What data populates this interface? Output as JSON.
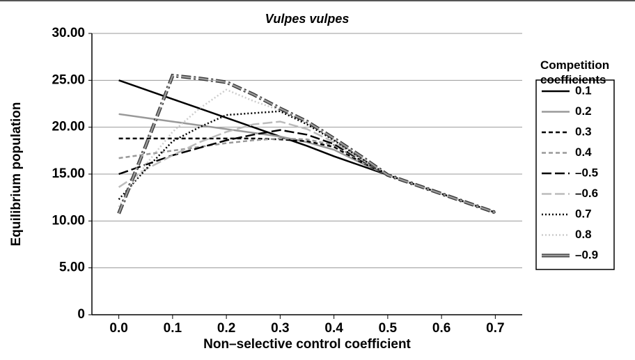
{
  "chart_data": {
    "type": "line",
    "title": "Vulpes vulpes",
    "xlabel": "Non–selective control coefficient",
    "ylabel": "Equilibrium population",
    "legend_title": "Competition coefficients",
    "x": [
      0,
      0.05,
      0.1,
      0.15,
      0.2,
      0.25,
      0.3,
      0.35,
      0.4,
      0.45,
      0.5,
      0.55,
      0.6,
      0.65,
      0.7
    ],
    "xlim": [
      -0.05,
      0.75
    ],
    "xticks": [
      {
        "value": 0,
        "label": "0.0"
      },
      0.1,
      0.2,
      0.3,
      0.4,
      0.5,
      0.6,
      0.7
    ],
    "ylim": [
      0,
      30
    ],
    "yticks": [
      0,
      {
        "value": 5,
        "label": "5.00"
      },
      {
        "value": 10,
        "label": "10.00"
      },
      {
        "value": 15,
        "label": "15.00"
      },
      {
        "value": 20,
        "label": "20.00"
      },
      {
        "value": 25,
        "label": "25.00"
      },
      {
        "value": 30,
        "label": "30.00"
      }
    ],
    "grid": true,
    "legend": "right",
    "series": [
      {
        "name": "0.1",
        "color": "#000000",
        "dash": "none",
        "values": [
          25,
          24,
          23,
          22,
          21,
          20,
          19,
          18,
          16.9,
          15.9,
          14.9,
          13.9,
          12.9,
          11.9,
          10.9
        ]
      },
      {
        "name": "0.2",
        "color": "#999999",
        "dash": "none",
        "values": [
          21.4,
          21,
          20.6,
          20.2,
          19.8,
          19.4,
          19,
          18.4,
          17.6,
          16.2,
          14.9,
          13.9,
          12.9,
          11.9,
          10.9
        ]
      },
      {
        "name": "0.3",
        "color": "#000000",
        "dash": "6,4",
        "values": [
          18.8,
          18.8,
          18.8,
          18.8,
          18.8,
          18.8,
          18.7,
          18.5,
          17.9,
          16.3,
          14.9,
          13.9,
          12.9,
          11.9,
          10.9
        ]
      },
      {
        "name": "0.4",
        "color": "#999999",
        "dash": "6,4",
        "values": [
          16.7,
          17.1,
          17.5,
          17.9,
          18.3,
          18.6,
          18.8,
          18.7,
          18.1,
          16.4,
          14.9,
          13.9,
          12.9,
          11.9,
          10.9
        ]
      },
      {
        "name": "–0.5",
        "color": "#000000",
        "dash": "14,5",
        "values": [
          15,
          16,
          17,
          17.8,
          18.6,
          19.2,
          19.7,
          19.2,
          18.2,
          16.5,
          14.9,
          13.9,
          12.9,
          11.9,
          10.9
        ]
      },
      {
        "name": "–0.6",
        "color": "#bbbbbb",
        "dash": "14,5",
        "values": [
          13.6,
          15.5,
          17,
          18.4,
          19.5,
          20.3,
          20.6,
          19.8,
          18.4,
          16.6,
          14.9,
          13.9,
          12.9,
          11.9,
          10.9
        ]
      },
      {
        "name": "0.7",
        "color": "#000000",
        "dash": "2,3",
        "values": [
          12.3,
          15.5,
          18.5,
          20,
          21.3,
          21.5,
          21.7,
          20.3,
          18.6,
          16.7,
          14.9,
          13.9,
          12.9,
          11.9,
          10.9
        ]
      },
      {
        "name": "0.8",
        "color": "#cccccc",
        "dash": "2,3",
        "values": [
          11.5,
          16,
          19.5,
          22,
          24,
          22.8,
          21.8,
          20.5,
          18.7,
          16.8,
          14.9,
          13.9,
          12.9,
          11.9,
          10.9
        ]
      },
      {
        "name": "–0.9",
        "color": "#999999",
        "dash": "14,4,3,4",
        "outline": "#333333",
        "values": [
          10.8,
          18,
          25.5,
          25.2,
          24.8,
          23.5,
          22,
          20.6,
          18.8,
          16.9,
          14.9,
          13.9,
          12.9,
          11.9,
          10.9
        ]
      }
    ]
  }
}
